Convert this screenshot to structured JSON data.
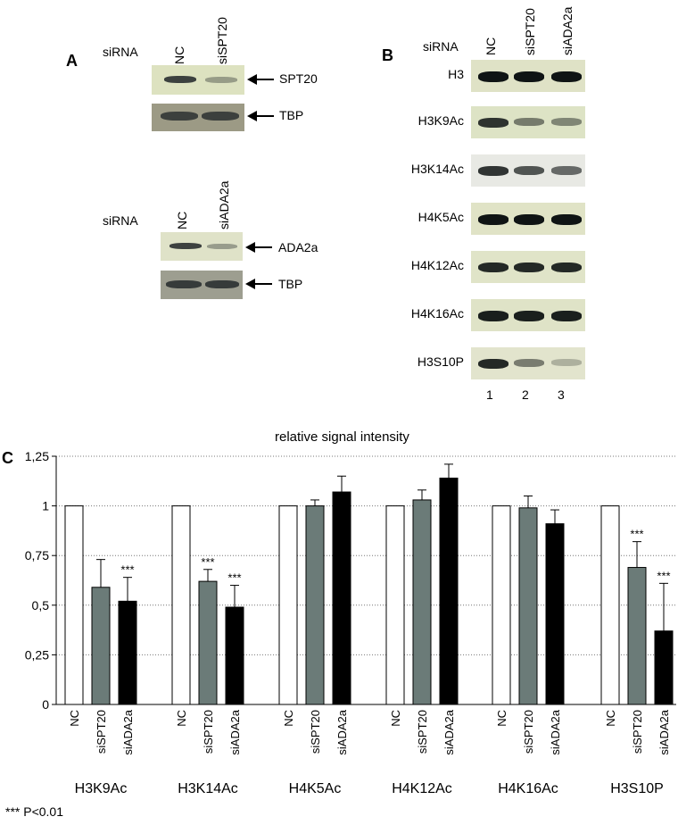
{
  "panel_a": {
    "letter": "A",
    "group1": {
      "sirna_label": "siRNA",
      "lanes": [
        "NC",
        "siSPT20"
      ],
      "rows": [
        {
          "label": "SPT20",
          "bands": [
            0.8,
            0.35
          ]
        },
        {
          "label": "TBP",
          "bands": [
            0.7,
            0.7
          ]
        }
      ]
    },
    "group2": {
      "sirna_label": "siRNA",
      "lanes": [
        "NC",
        "siADA2a"
      ],
      "rows": [
        {
          "label": "ADA2a",
          "bands": [
            0.8,
            0.35
          ]
        },
        {
          "label": "TBP",
          "bands": [
            0.75,
            0.75
          ]
        }
      ]
    }
  },
  "panel_b": {
    "letter": "B",
    "sirna_label": "siRNA",
    "lanes": [
      "NC",
      "siSPT20",
      "siADA2a"
    ],
    "lane_numbers": [
      "1",
      "2",
      "3"
    ],
    "rows": [
      {
        "label": "H3",
        "bands": [
          1.0,
          1.0,
          1.0
        ]
      },
      {
        "label": "H3K9Ac",
        "bands": [
          0.85,
          0.5,
          0.45
        ]
      },
      {
        "label": "H3K14Ac",
        "bands": [
          0.85,
          0.7,
          0.6
        ]
      },
      {
        "label": "H4K5Ac",
        "bands": [
          1.0,
          1.0,
          1.0
        ]
      },
      {
        "label": "H4K12Ac",
        "bands": [
          0.9,
          0.9,
          0.9
        ]
      },
      {
        "label": "H4K16Ac",
        "bands": [
          0.95,
          0.95,
          0.95
        ]
      },
      {
        "label": "H3S10P",
        "bands": [
          0.9,
          0.5,
          0.25
        ]
      }
    ]
  },
  "panel_c": {
    "letter": "C",
    "footnote": "*** P<0.01"
  },
  "chart_data": {
    "type": "bar",
    "title": "relative signal intensity",
    "xlabel": "",
    "ylabel": "",
    "ylim": [
      0,
      1.25
    ],
    "yticks": [
      "0",
      "0,25",
      "0,5",
      "0,75",
      "1",
      "1,25"
    ],
    "ytick_values": [
      0,
      0.25,
      0.5,
      0.75,
      1.0,
      1.25
    ],
    "grid": true,
    "bar_labels": [
      "NC",
      "siSPT20",
      "siADA2a"
    ],
    "series_colors": [
      "#ffffff",
      "#6b7b78",
      "#000000"
    ],
    "groups": [
      {
        "name": "H3K9Ac",
        "values": [
          1.0,
          0.59,
          0.52
        ],
        "errors": [
          0,
          0.14,
          0.12
        ],
        "stars": [
          "",
          "",
          "***"
        ]
      },
      {
        "name": "H3K14Ac",
        "values": [
          1.0,
          0.62,
          0.49
        ],
        "errors": [
          0,
          0.06,
          0.11
        ],
        "stars": [
          "",
          "***",
          "***"
        ]
      },
      {
        "name": "H4K5Ac",
        "values": [
          1.0,
          1.0,
          1.07
        ],
        "errors": [
          0,
          0.03,
          0.08
        ],
        "stars": [
          "",
          "",
          ""
        ]
      },
      {
        "name": "H4K12Ac",
        "values": [
          1.0,
          1.03,
          1.14
        ],
        "errors": [
          0,
          0.05,
          0.07
        ],
        "stars": [
          "",
          "",
          ""
        ]
      },
      {
        "name": "H4K16Ac",
        "values": [
          1.0,
          0.99,
          0.91
        ],
        "errors": [
          0,
          0.06,
          0.07
        ],
        "stars": [
          "",
          "",
          ""
        ]
      },
      {
        "name": "H3S10P",
        "values": [
          1.0,
          0.69,
          0.37
        ],
        "errors": [
          0,
          0.13,
          0.24
        ],
        "stars": [
          "",
          "***",
          "***"
        ]
      }
    ]
  }
}
